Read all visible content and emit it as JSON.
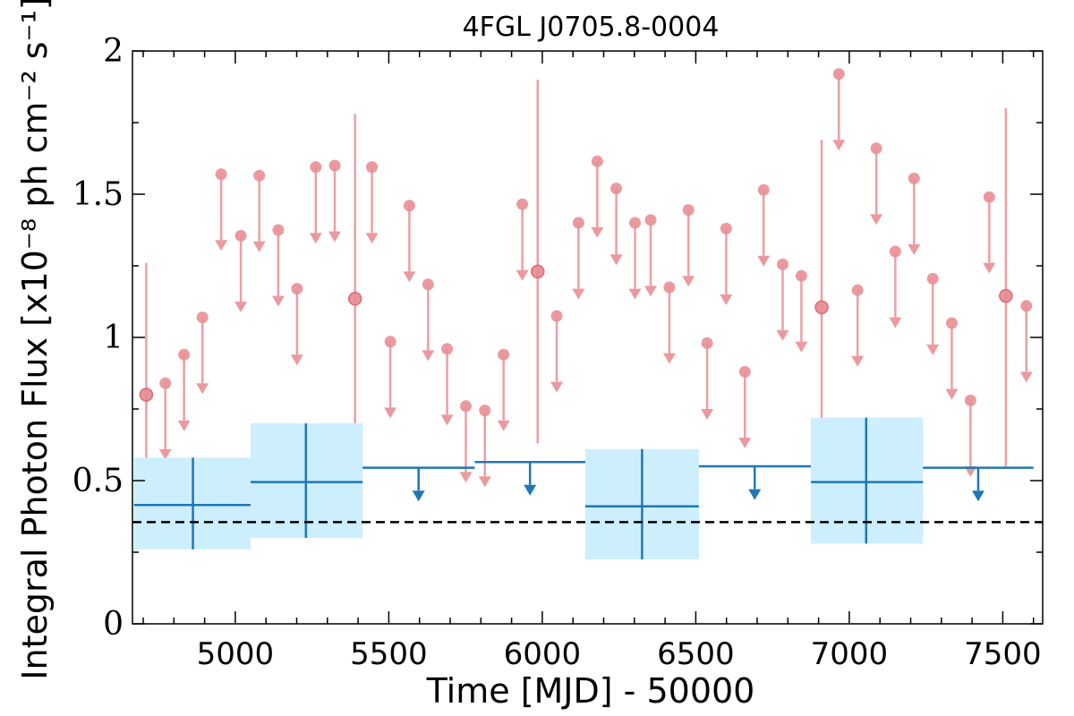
{
  "chart_data": {
    "type": "scatter",
    "title": "4FGL J0705.8-0004",
    "xlabel": "Time [MJD] - 50000",
    "ylabel": "Integral Photon Flux [x10⁻⁸ ph cm⁻² s⁻¹]",
    "xlim": [
      4665,
      7630
    ],
    "ylim": [
      0,
      2
    ],
    "x_ticks": [
      "5000",
      "5500",
      "6000",
      "6500",
      "7000",
      "7500"
    ],
    "y_ticks": [
      "0",
      "0.5",
      "1",
      "1.5",
      "2"
    ],
    "grid": false,
    "reference_line": {
      "y": 0.355,
      "style": "dashed",
      "color": "#000000"
    },
    "colors": {
      "short_bins": "#e88f95",
      "long_bins": "#1f77b4",
      "long_bins_error_box": "#cdeefd"
    },
    "series": [
      {
        "points": [
          {
            "x": 4710,
            "y": 0.8,
            "yerr_low": 0.43,
            "yerr_high": 1.26
          },
          {
            "x": 5390,
            "y": 1.135,
            "yerr_low": 0.56,
            "yerr_high": 1.78
          },
          {
            "x": 5985,
            "y": 1.23,
            "yerr_low": 0.63,
            "yerr_high": 1.9
          },
          {
            "x": 6910,
            "y": 1.105,
            "yerr_low": 0.58,
            "yerr_high": 1.69
          },
          {
            "x": 7510,
            "y": 1.145,
            "yerr_low": 0.55,
            "yerr_high": 1.8
          }
        ],
        "upper_limits": [
          {
            "x": 4772,
            "y": 0.84
          },
          {
            "x": 4833,
            "y": 0.94
          },
          {
            "x": 4893,
            "y": 1.07
          },
          {
            "x": 4954,
            "y": 1.57
          },
          {
            "x": 5018,
            "y": 1.355
          },
          {
            "x": 5078,
            "y": 1.565
          },
          {
            "x": 5140,
            "y": 1.375
          },
          {
            "x": 5201,
            "y": 1.17
          },
          {
            "x": 5262,
            "y": 1.595
          },
          {
            "x": 5324,
            "y": 1.6
          },
          {
            "x": 5445,
            "y": 1.595
          },
          {
            "x": 5505,
            "y": 0.985
          },
          {
            "x": 5567,
            "y": 1.46
          },
          {
            "x": 5628,
            "y": 1.185
          },
          {
            "x": 5690,
            "y": 0.96
          },
          {
            "x": 5751,
            "y": 0.76
          },
          {
            "x": 5813,
            "y": 0.745
          },
          {
            "x": 5874,
            "y": 0.94
          },
          {
            "x": 5935,
            "y": 1.465
          },
          {
            "x": 6047,
            "y": 1.075
          },
          {
            "x": 6118,
            "y": 1.4
          },
          {
            "x": 6179,
            "y": 1.615
          },
          {
            "x": 6241,
            "y": 1.52
          },
          {
            "x": 6302,
            "y": 1.4
          },
          {
            "x": 6353,
            "y": 1.41
          },
          {
            "x": 6414,
            "y": 1.175
          },
          {
            "x": 6476,
            "y": 1.445
          },
          {
            "x": 6537,
            "y": 0.98
          },
          {
            "x": 6599,
            "y": 1.38
          },
          {
            "x": 6660,
            "y": 0.88
          },
          {
            "x": 6721,
            "y": 1.515
          },
          {
            "x": 6783,
            "y": 1.255
          },
          {
            "x": 6844,
            "y": 1.215
          },
          {
            "x": 6966,
            "y": 1.92
          },
          {
            "x": 7027,
            "y": 1.165
          },
          {
            "x": 7088,
            "y": 1.66
          },
          {
            "x": 7150,
            "y": 1.3
          },
          {
            "x": 7211,
            "y": 1.555
          },
          {
            "x": 7272,
            "y": 1.205
          },
          {
            "x": 7334,
            "y": 1.05
          },
          {
            "x": 7395,
            "y": 0.78
          },
          {
            "x": 7456,
            "y": 1.49
          },
          {
            "x": 7577,
            "y": 1.11
          }
        ]
      },
      {
        "points": [
          {
            "x": 5050,
            "x_low": 4670,
            "x_high": 5050,
            "xc": 4862,
            "y": 0.415,
            "yerr_low": 0.26,
            "yerr_high": 0.58
          },
          {
            "x": 5230,
            "x_low": 5050,
            "x_high": 5415,
            "xc": 5230,
            "y": 0.495,
            "yerr_low": 0.3,
            "yerr_high": 0.7
          },
          {
            "x": 6325,
            "x_low": 6140,
            "x_high": 6510,
            "xc": 6325,
            "y": 0.41,
            "yerr_low": 0.225,
            "yerr_high": 0.61
          },
          {
            "x": 7055,
            "x_low": 6875,
            "x_high": 7240,
            "xc": 7055,
            "y": 0.495,
            "yerr_low": 0.28,
            "yerr_high": 0.72
          }
        ],
        "upper_limits": [
          {
            "x_low": 5415,
            "x_high": 5780,
            "xc": 5597,
            "y": 0.545
          },
          {
            "x_low": 5780,
            "x_high": 6140,
            "xc": 5960,
            "y": 0.565
          },
          {
            "x_low": 6510,
            "x_high": 6875,
            "xc": 6692,
            "y": 0.55
          },
          {
            "x_low": 7240,
            "x_high": 7600,
            "xc": 7420,
            "y": 0.545
          }
        ]
      }
    ]
  }
}
